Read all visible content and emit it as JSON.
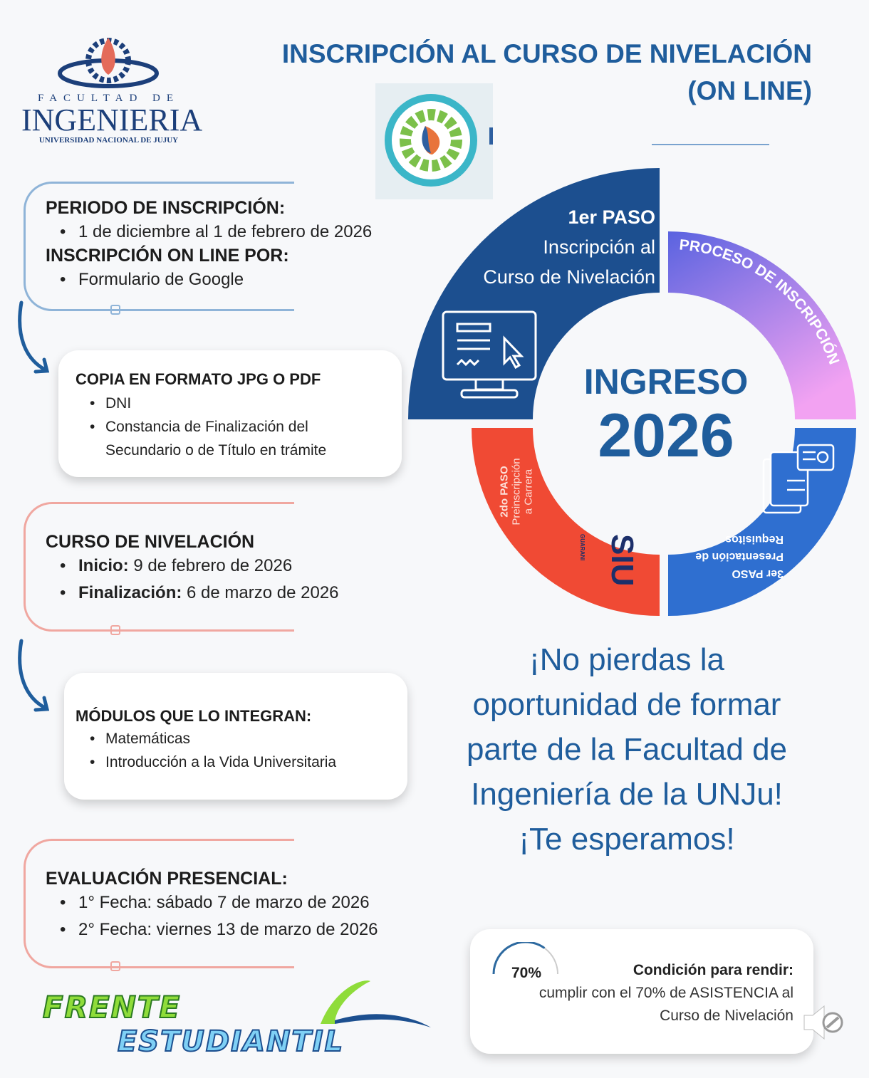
{
  "header": {
    "title_line1": "INSCRIPCIÓN AL CURSO DE NIVELACIÓN",
    "title_line2": "(ON LINE)"
  },
  "logo": {
    "line1": "FACULTAD DE",
    "line2": "INGENIERIA",
    "line3": "UNIVERSIDAD NACIONAL DE JUJUY"
  },
  "periodo": {
    "heading": "PERIODO DE INSCRIPCIÓN:",
    "items": [
      "1 de diciembre al 1 de febrero de 2026"
    ],
    "heading2": "INSCRIPCIÓN ON LINE POR:",
    "items2": [
      "Formulario de Google"
    ]
  },
  "copia": {
    "heading": "COPIA EN FORMATO JPG O PDF",
    "items": [
      "DNI",
      "Constancia de Finalización del Secundario o de Título en trámite"
    ]
  },
  "curso": {
    "heading": "CURSO DE NIVELACIÓN",
    "items": [
      {
        "label": "Inicio:",
        "value": "9 de febrero de 2026"
      },
      {
        "label": "Finalización:",
        "value": "6 de marzo de 2026"
      }
    ]
  },
  "modulos": {
    "heading": "MÓDULOS QUE LO INTEGRAN:",
    "items": [
      "Matemáticas",
      "Introducción a la Vida Universitaria"
    ]
  },
  "evaluacion": {
    "heading": "EVALUACIÓN PRESENCIAL:",
    "items": [
      "1° Fecha: sábado 7 de marzo de 2026",
      "2° Fecha: viernes 13 de marzo de 2026"
    ]
  },
  "ring": {
    "center_line1": "INGRESO",
    "center_line2": "2026",
    "step1": {
      "title": "1er PASO",
      "line1": "Inscripción al",
      "line2": "Curso de Nivelación",
      "color": "#1c4f8f"
    },
    "process": {
      "label": "PROCESO DE INSCRIPCIÓN",
      "color_top": "#5a63e0",
      "color_bottom": "#f2a2f2"
    },
    "step2": {
      "title": "2do PASO",
      "line1": "Preinscripción",
      "line2": "a Carrera",
      "logo": "SIU",
      "logo_sub": "GUARANI",
      "color": "#f04a34"
    },
    "step3": {
      "title": "3er PASO",
      "line1": "Presentación de",
      "line2": "Requisitos",
      "color": "#2f6fd0"
    }
  },
  "slogan": [
    "¡No pierdas la",
    "oportunidad de formar",
    "parte de la Facultad de",
    "Ingeniería de la UNJu!",
    "¡Te esperamos!"
  ],
  "condicion": {
    "percent_label": "70%",
    "percent": 70,
    "title": "Condición para rendir:",
    "line1": "cumplir con el 70% de ASISTENCIA al",
    "line2": "Curso de Nivelación"
  },
  "footer_logo": {
    "line1": "FRENTE",
    "line2": "ESTUDIANTIL"
  },
  "icons": [
    "monitor-form-icon",
    "documents-icon",
    "muted-speaker-icon",
    "gear-logo-icon",
    "down-arrow-icon"
  ]
}
